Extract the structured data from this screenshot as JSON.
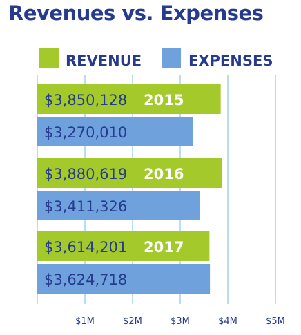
{
  "title": "Revenues vs. Expenses",
  "colors": {
    "title": "#263a8e",
    "revenue": "#a3c92a",
    "expenses": "#6fa1dd",
    "gridline": "#bcdcf0",
    "year_text": "#ffffff"
  },
  "chart_data": {
    "type": "bar",
    "orientation": "horizontal",
    "title": "Revenues vs. Expenses",
    "categories": [
      "2015",
      "2016",
      "2017"
    ],
    "series": [
      {
        "name": "REVENUE",
        "values": [
          3850128,
          3880619,
          3614201
        ],
        "labels": [
          "$3,850,128",
          "$3,880,619",
          "$3,614,201"
        ]
      },
      {
        "name": "EXPENSES",
        "values": [
          3270010,
          3411326,
          3624718
        ],
        "labels": [
          "$3,270,010",
          "$3,411,326",
          "$3,624,718"
        ]
      }
    ],
    "xlim": [
      0,
      5000000
    ],
    "xticks": [
      1000000,
      2000000,
      3000000,
      4000000,
      5000000
    ],
    "xtick_labels": [
      "$1M",
      "$2M",
      "$3M",
      "$4M",
      "$5M"
    ],
    "grid": true,
    "legend_position": "top"
  }
}
